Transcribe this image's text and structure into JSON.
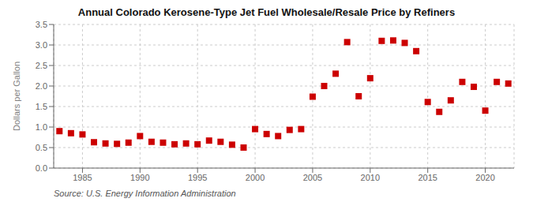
{
  "chart_data": {
    "type": "scatter",
    "title": "Annual Colorado Kerosene-Type Jet Fuel Wholesale/Resale Price by Refiners",
    "ylabel": "Dollars per Gallon",
    "source": "Source: U.S. Energy Information Administration",
    "x": [
      1983,
      1984,
      1985,
      1986,
      1987,
      1988,
      1989,
      1990,
      1991,
      1992,
      1993,
      1994,
      1995,
      1996,
      1997,
      1998,
      1999,
      2000,
      2001,
      2002,
      2003,
      2004,
      2005,
      2006,
      2007,
      2008,
      2009,
      2010,
      2011,
      2012,
      2013,
      2014,
      2015,
      2016,
      2017,
      2018,
      2019,
      2020,
      2021,
      2022
    ],
    "values": [
      0.9,
      0.85,
      0.82,
      0.63,
      0.6,
      0.59,
      0.62,
      0.78,
      0.64,
      0.62,
      0.58,
      0.6,
      0.58,
      0.67,
      0.64,
      0.57,
      0.5,
      0.95,
      0.83,
      0.78,
      0.93,
      0.95,
      1.74,
      2.0,
      2.3,
      3.07,
      1.75,
      2.19,
      3.1,
      3.11,
      3.05,
      2.85,
      1.61,
      1.37,
      1.65,
      2.1,
      1.98,
      1.4,
      2.1,
      2.06
    ],
    "color": "#cc0000",
    "marker": "square",
    "xlim": [
      1982.5,
      2022.5
    ],
    "xticks": [
      1985,
      1990,
      1995,
      2000,
      2005,
      2010,
      2015,
      2020
    ],
    "ylim": [
      0.0,
      3.5
    ],
    "yticks": [
      {
        "value": 0,
        "label": "0.0"
      },
      0.5,
      {
        "value": 1,
        "label": "1.0"
      },
      1.5,
      {
        "value": 2,
        "label": "2.0"
      },
      2.5,
      {
        "value": 3,
        "label": "3.0"
      },
      3.5
    ],
    "grid": true
  }
}
